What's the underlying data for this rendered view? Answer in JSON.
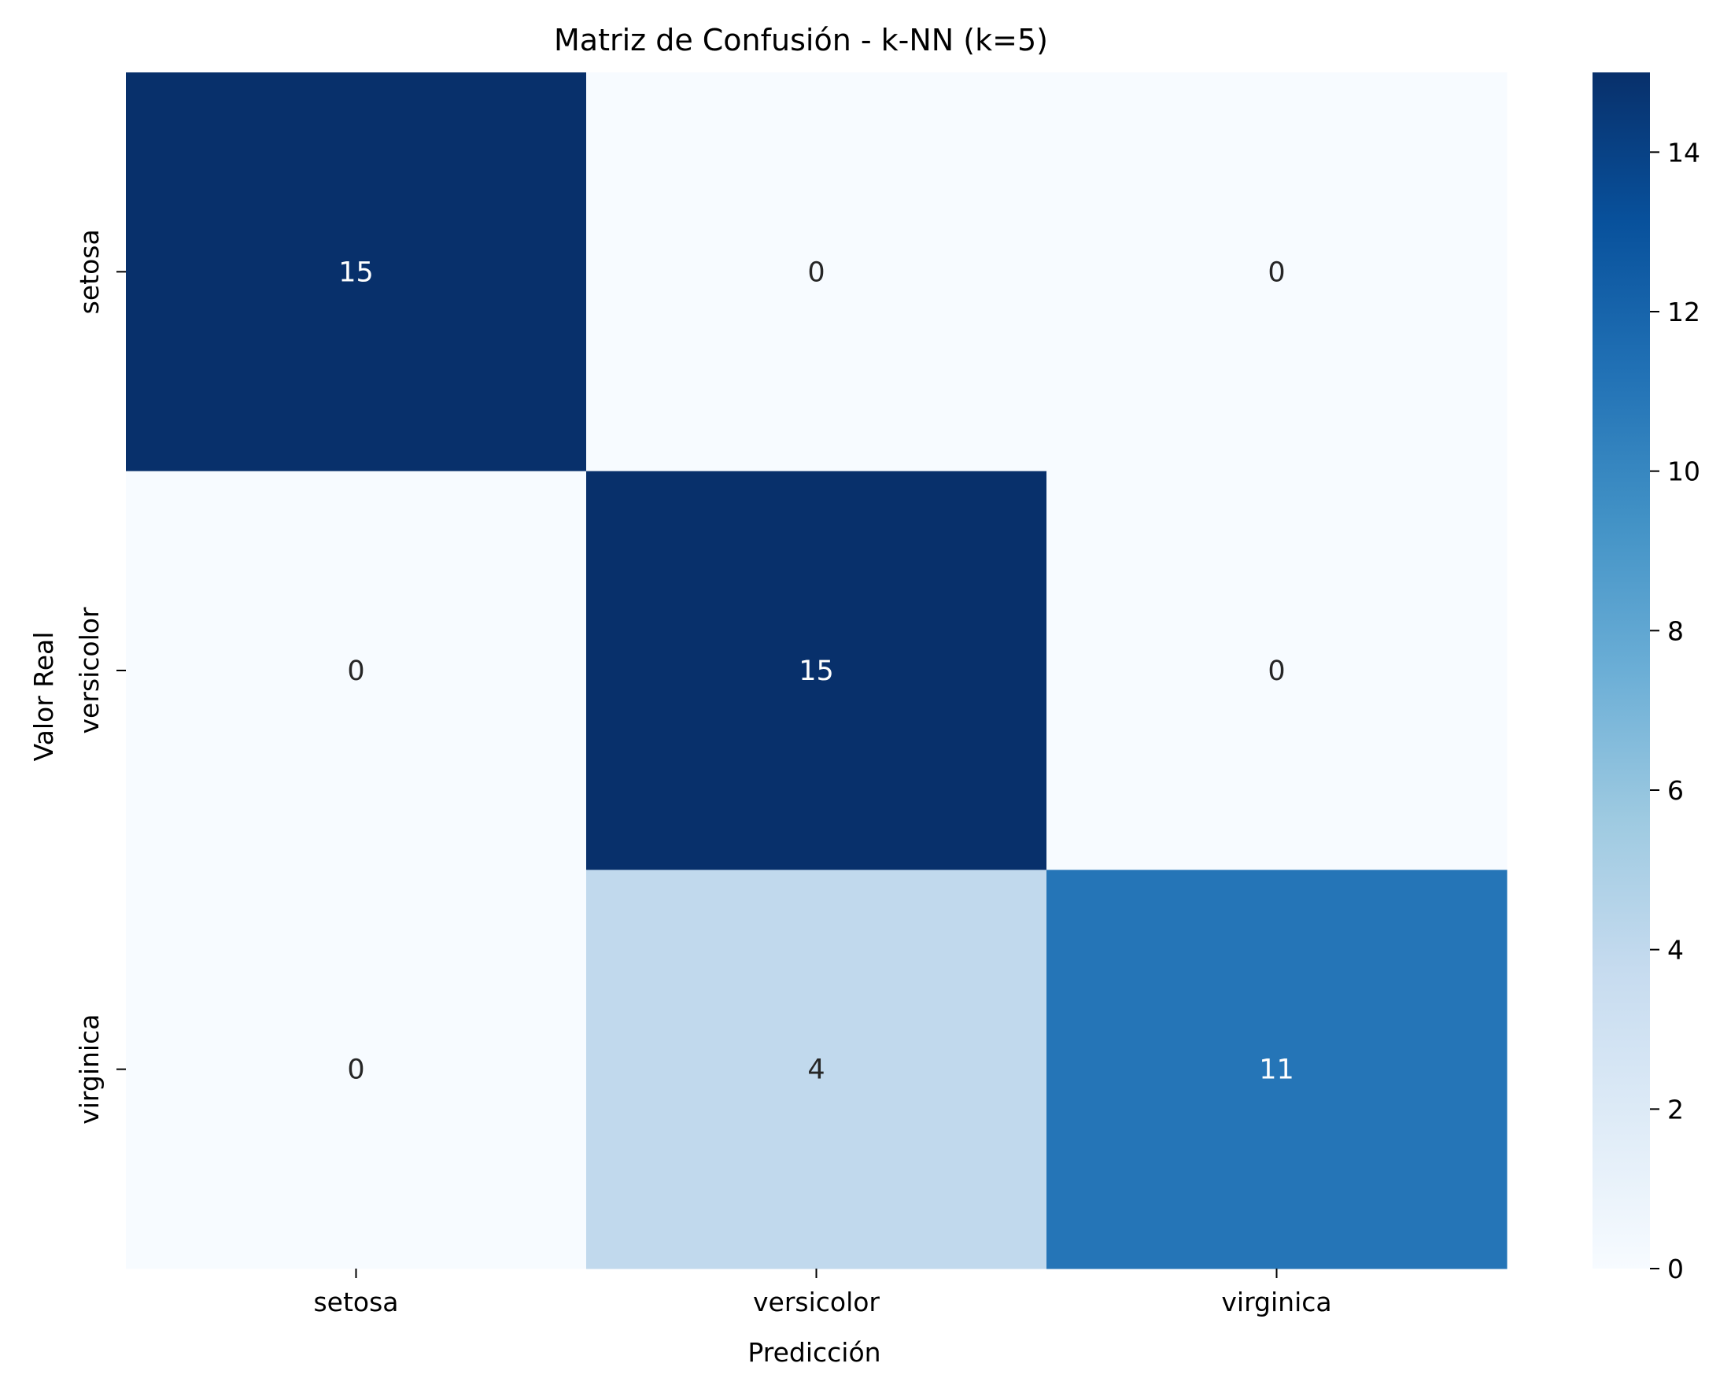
{
  "chart_data": {
    "type": "heatmap",
    "title": "Matriz de Confusión - k-NN (k=5)",
    "xlabel": "Predicción",
    "ylabel": "Valor Real",
    "x_categories": [
      "setosa",
      "versicolor",
      "virginica"
    ],
    "y_categories": [
      "setosa",
      "versicolor",
      "virginica"
    ],
    "values": [
      [
        15,
        0,
        0
      ],
      [
        0,
        15,
        0
      ],
      [
        0,
        4,
        11
      ]
    ],
    "colormap": "Blues",
    "vmin": 0,
    "vmax": 15,
    "colorbar_ticks": [
      0,
      2,
      4,
      6,
      8,
      10,
      12,
      14
    ],
    "annotations": true,
    "grid": false
  }
}
